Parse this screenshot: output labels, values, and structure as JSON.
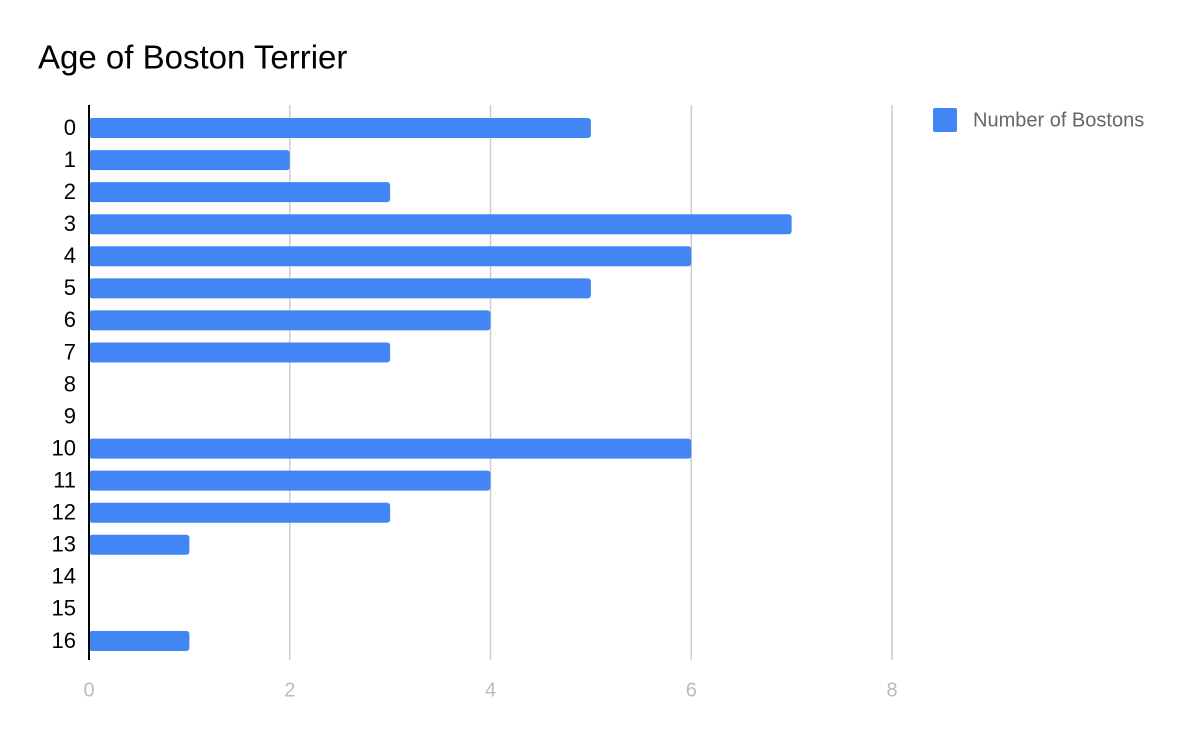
{
  "chart_data": {
    "type": "bar",
    "orientation": "horizontal",
    "title": "Age of Boston Terrier",
    "categories": [
      "0",
      "1",
      "2",
      "3",
      "4",
      "5",
      "6",
      "7",
      "8",
      "9",
      "10",
      "11",
      "12",
      "13",
      "14",
      "15",
      "16"
    ],
    "series": [
      {
        "name": "Number of Bostons",
        "color": "#4285f4",
        "values": [
          5,
          2,
          3,
          7,
          6,
          5,
          4,
          3,
          0,
          0,
          6,
          4,
          3,
          1,
          0,
          0,
          1
        ]
      }
    ],
    "xlim": [
      0,
      8
    ],
    "xticks": [
      0,
      2,
      4,
      6,
      8
    ],
    "grid": true,
    "legend": "right"
  }
}
